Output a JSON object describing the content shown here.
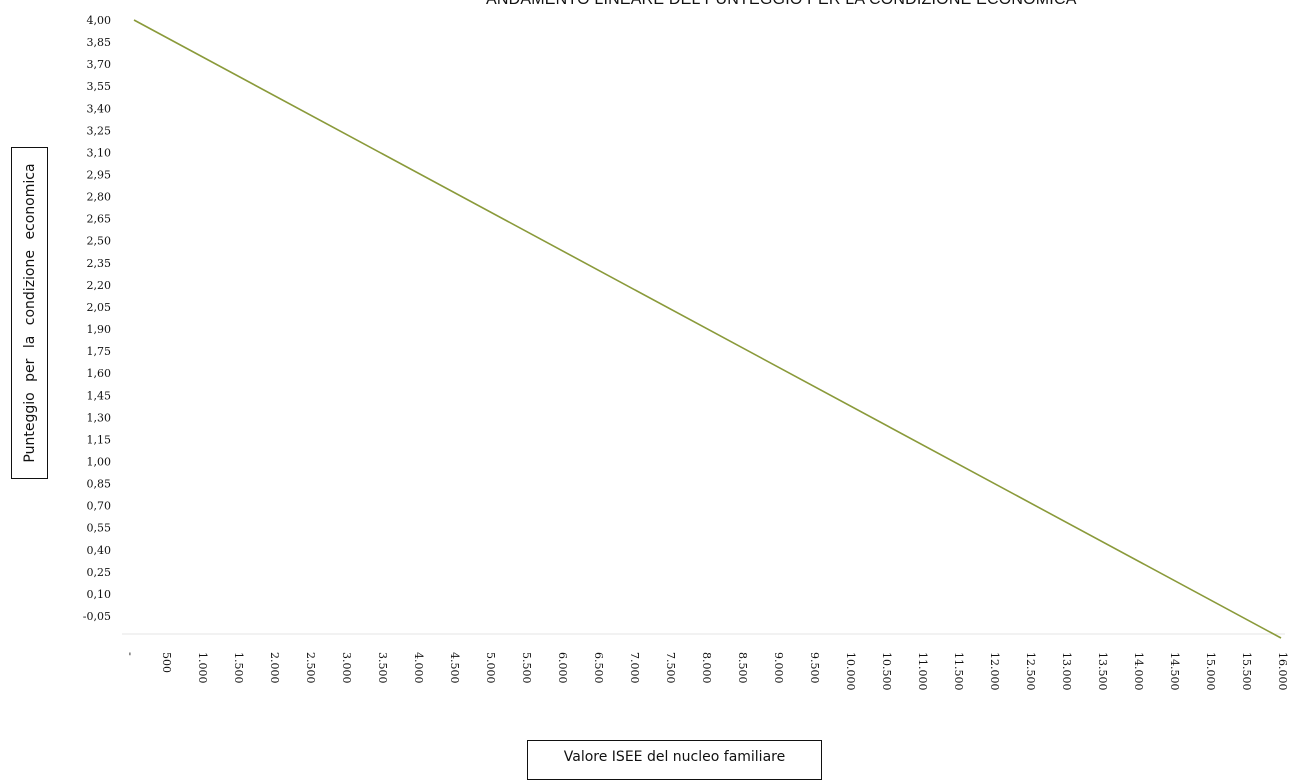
{
  "chart_data": {
    "type": "line",
    "title": "ANDAMENTO LINEARE DEL PUNTEGGIO PER LA CONDIZIONE ECONOMICA",
    "xlabel": "Valore  ISEE del nucleo familiare",
    "ylabel": "Punteggio  per  la condizione  economica",
    "grid": false,
    "legend": "none",
    "line_color": "#8a9a3a",
    "x_tick_labels": [
      "-",
      "500",
      "1.000",
      "1.500",
      "2.000",
      "2.500",
      "3.000",
      "3.500",
      "4.000",
      "4.500",
      "5.000",
      "5.500",
      "6.000",
      "6.500",
      "7.000",
      "7.500",
      "8.000",
      "8.500",
      "9.000",
      "9.500",
      "10.000",
      "10.500",
      "11.000",
      "11.500",
      "12.000",
      "12.500",
      "13.000",
      "13.500",
      "14.000",
      "14.500",
      "15.000",
      "15.500",
      "16.000"
    ],
    "y_tick_labels": [
      "4,00",
      "3,85",
      "3,70",
      "3,55",
      "3,40",
      "3,25",
      "3,10",
      "2,95",
      "2,80",
      "2,65",
      "2,50",
      "2,35",
      "2,20",
      "2,05",
      "1,90",
      "1,75",
      "1,60",
      "1,45",
      "1,30",
      "1,15",
      "1,00",
      "0,85",
      "0,70",
      "0,55",
      "0,40",
      "0,25",
      "0,10",
      "-0,05"
    ],
    "xlim": [
      0,
      16000
    ],
    "ylim": [
      -0.05,
      4.0
    ],
    "series": [
      {
        "x": [
          0,
          16000
        ],
        "y": [
          4.0,
          -0.05
        ]
      }
    ]
  }
}
